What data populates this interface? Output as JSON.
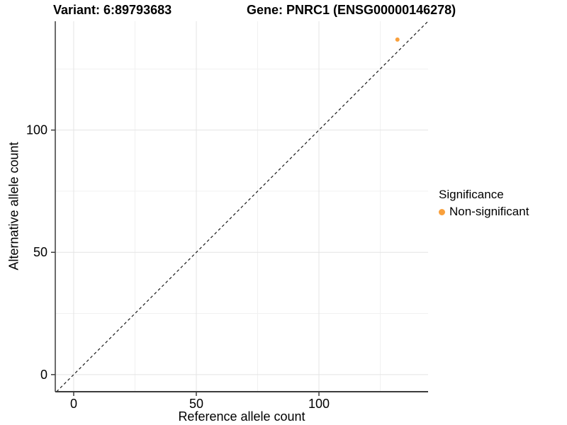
{
  "titles": {
    "variant": "Variant: 6:89793683",
    "gene": "Gene: PNRC1 (ENSG00000146278)"
  },
  "axes": {
    "x": {
      "label": "Reference allele count"
    },
    "y": {
      "label": "Alternative allele count"
    }
  },
  "legend": {
    "title": "Significance",
    "items": [
      {
        "label": "Non-significant",
        "color": "#F9A03C"
      }
    ]
  },
  "chart_data": {
    "type": "scatter",
    "title": "Variant: 6:89793683   Gene: PNRC1 (ENSG00000146278)",
    "xlabel": "Reference allele count",
    "ylabel": "Alternative allele count",
    "xlim": [
      -7.5,
      144.5
    ],
    "ylim": [
      -7.0,
      144.5
    ],
    "x_ticks": [
      0,
      50,
      100
    ],
    "y_ticks": [
      0,
      50,
      100
    ],
    "x_minor_ticks": [
      25,
      75,
      125
    ],
    "y_minor_ticks": [
      25,
      75,
      125
    ],
    "points": [
      {
        "x": 132,
        "y": 137,
        "series": "Non-significant",
        "color": "#F9A03C",
        "radius": 3
      }
    ],
    "reference_line": {
      "type": "abline",
      "slope": 1,
      "intercept": 0,
      "style": "dashed",
      "color": "#1A1A1A"
    },
    "grid": "major+minor",
    "legend_position": "right",
    "colors": {
      "grid_major": "#E4E4E4",
      "grid_minor": "#F1F1F1",
      "axis_line": "#3C3C3C",
      "tick_label": "#000000",
      "background": "#FFFFFF"
    }
  }
}
